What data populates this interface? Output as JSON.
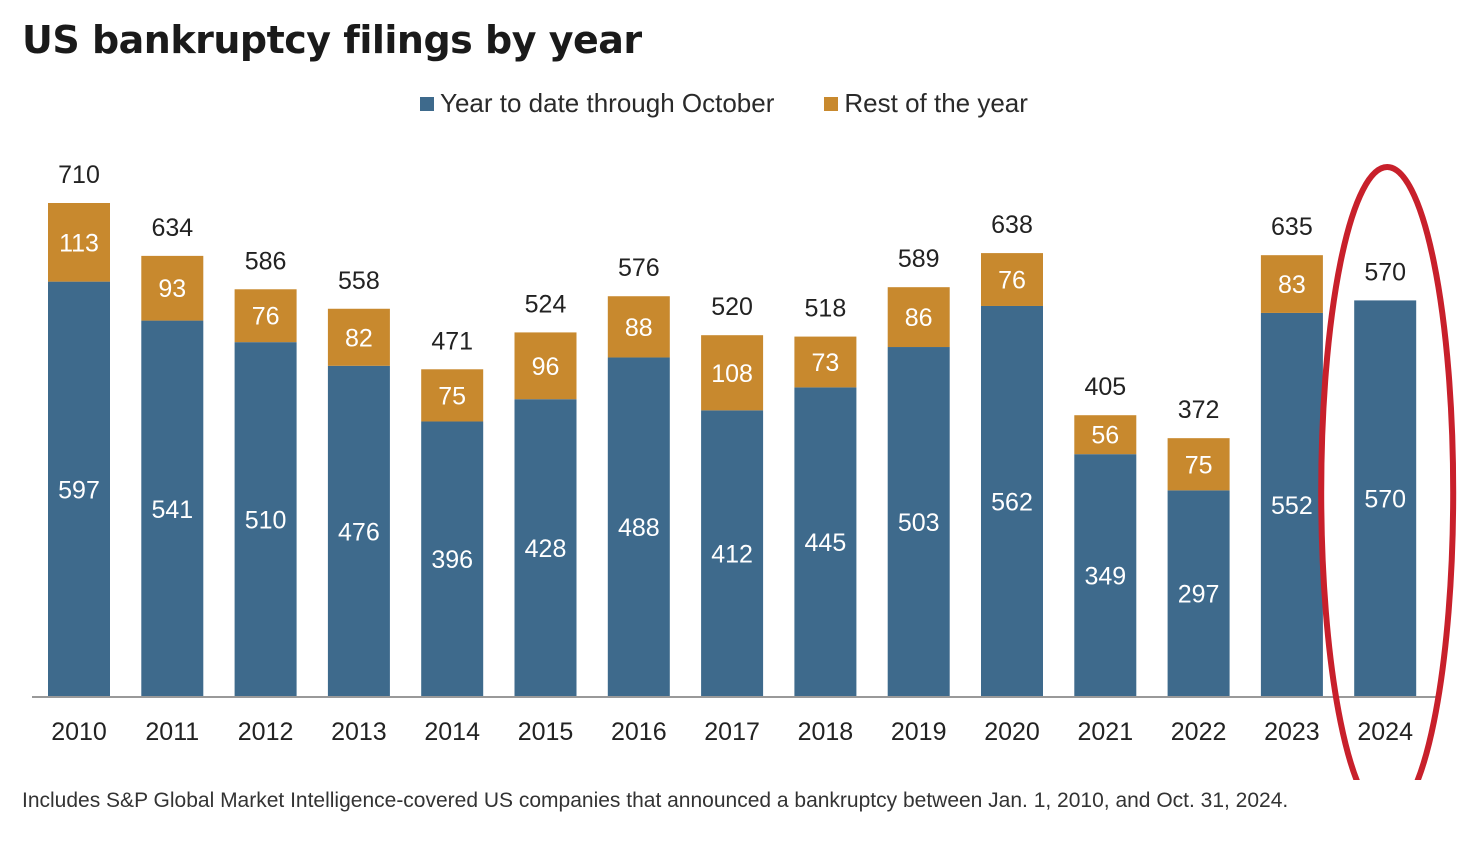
{
  "title": "US bankruptcy filings by year",
  "footnote": "Includes S&P Global Market Intelligence-covered US companies that announced a bankruptcy between Jan. 1, 2010, and Oct. 31, 2024.",
  "legend": [
    {
      "name": "Year to date through October",
      "color": "#3e6a8c"
    },
    {
      "name": "Rest of the year",
      "color": "#c8892e"
    }
  ],
  "colors": {
    "ytd": "#3e6a8c",
    "rest": "#c8892e",
    "highlight": "#c8202b",
    "axis": "#999999"
  },
  "highlight_category": "2024",
  "chart_data": {
    "type": "bar",
    "stacked": true,
    "title": "US bankruptcy filings by year",
    "categories": [
      "2010",
      "2011",
      "2012",
      "2013",
      "2014",
      "2015",
      "2016",
      "2017",
      "2018",
      "2019",
      "2020",
      "2021",
      "2022",
      "2023",
      "2024"
    ],
    "series": [
      {
        "name": "Year to date through October",
        "values": [
          597,
          541,
          510,
          476,
          396,
          428,
          488,
          412,
          445,
          503,
          562,
          349,
          297,
          552,
          570
        ]
      },
      {
        "name": "Rest of the year",
        "values": [
          113,
          93,
          76,
          82,
          75,
          96,
          88,
          108,
          73,
          86,
          76,
          56,
          75,
          83,
          0
        ]
      }
    ],
    "totals": [
      710,
      634,
      586,
      558,
      471,
      524,
      576,
      520,
      518,
      589,
      638,
      405,
      372,
      635,
      570
    ],
    "ylim": [
      0,
      710
    ],
    "grid": false,
    "legend_position": "top"
  }
}
